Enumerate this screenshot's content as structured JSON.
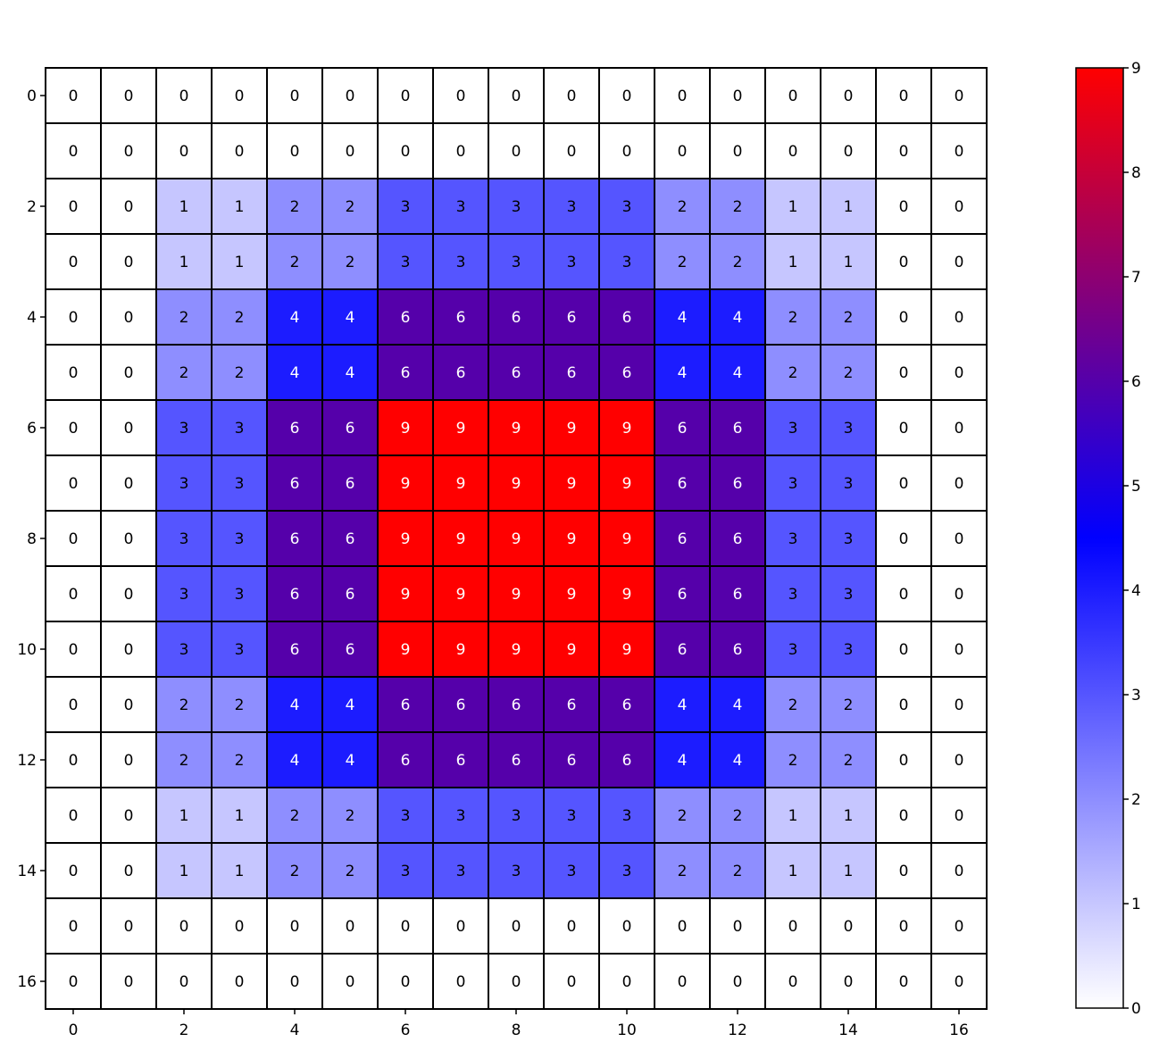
{
  "chart_data": {
    "type": "heatmap",
    "title": "",
    "xlabel": "",
    "ylabel": "",
    "x_ticks": [
      0,
      2,
      4,
      6,
      8,
      10,
      12,
      14,
      16
    ],
    "y_ticks": [
      0,
      2,
      4,
      6,
      8,
      10,
      12,
      14,
      16
    ],
    "grid": true,
    "cell_labels": true,
    "colormap": {
      "name": "white-blue-red",
      "stops": [
        {
          "value": 0,
          "color": "#ffffff"
        },
        {
          "value": 4.5,
          "color": "#0000ff"
        },
        {
          "value": 9,
          "color": "#ff0000"
        }
      ]
    },
    "colorbar": {
      "min": 0,
      "max": 9,
      "ticks": [
        0,
        1,
        2,
        3,
        4,
        5,
        6,
        7,
        8,
        9
      ],
      "placement": "right"
    },
    "values": [
      [
        0,
        0,
        0,
        0,
        0,
        0,
        0,
        0,
        0,
        0,
        0,
        0,
        0,
        0,
        0,
        0,
        0
      ],
      [
        0,
        0,
        0,
        0,
        0,
        0,
        0,
        0,
        0,
        0,
        0,
        0,
        0,
        0,
        0,
        0,
        0
      ],
      [
        0,
        0,
        1,
        1,
        2,
        2,
        3,
        3,
        3,
        3,
        3,
        2,
        2,
        1,
        1,
        0,
        0
      ],
      [
        0,
        0,
        1,
        1,
        2,
        2,
        3,
        3,
        3,
        3,
        3,
        2,
        2,
        1,
        1,
        0,
        0
      ],
      [
        0,
        0,
        2,
        2,
        4,
        4,
        6,
        6,
        6,
        6,
        6,
        4,
        4,
        2,
        2,
        0,
        0
      ],
      [
        0,
        0,
        2,
        2,
        4,
        4,
        6,
        6,
        6,
        6,
        6,
        4,
        4,
        2,
        2,
        0,
        0
      ],
      [
        0,
        0,
        3,
        3,
        6,
        6,
        9,
        9,
        9,
        9,
        9,
        6,
        6,
        3,
        3,
        0,
        0
      ],
      [
        0,
        0,
        3,
        3,
        6,
        6,
        9,
        9,
        9,
        9,
        9,
        6,
        6,
        3,
        3,
        0,
        0
      ],
      [
        0,
        0,
        3,
        3,
        6,
        6,
        9,
        9,
        9,
        9,
        9,
        6,
        6,
        3,
        3,
        0,
        0
      ],
      [
        0,
        0,
        3,
        3,
        6,
        6,
        9,
        9,
        9,
        9,
        9,
        6,
        6,
        3,
        3,
        0,
        0
      ],
      [
        0,
        0,
        3,
        3,
        6,
        6,
        9,
        9,
        9,
        9,
        9,
        6,
        6,
        3,
        3,
        0,
        0
      ],
      [
        0,
        0,
        2,
        2,
        4,
        4,
        6,
        6,
        6,
        6,
        6,
        4,
        4,
        2,
        2,
        0,
        0
      ],
      [
        0,
        0,
        2,
        2,
        4,
        4,
        6,
        6,
        6,
        6,
        6,
        4,
        4,
        2,
        2,
        0,
        0
      ],
      [
        0,
        0,
        1,
        1,
        2,
        2,
        3,
        3,
        3,
        3,
        3,
        2,
        2,
        1,
        1,
        0,
        0
      ],
      [
        0,
        0,
        1,
        1,
        2,
        2,
        3,
        3,
        3,
        3,
        3,
        2,
        2,
        1,
        1,
        0,
        0
      ],
      [
        0,
        0,
        0,
        0,
        0,
        0,
        0,
        0,
        0,
        0,
        0,
        0,
        0,
        0,
        0,
        0,
        0
      ],
      [
        0,
        0,
        0,
        0,
        0,
        0,
        0,
        0,
        0,
        0,
        0,
        0,
        0,
        0,
        0,
        0,
        0
      ]
    ]
  }
}
